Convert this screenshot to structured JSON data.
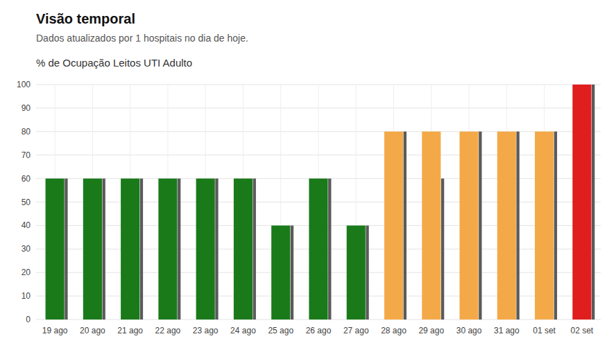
{
  "chart_data": {
    "type": "bar",
    "title": "Visão temporal",
    "subtitle": "Dados atualizados por 1 hospitais no dia de hoje.",
    "ylabel": "% de Ocupação Leitos UTI Adulto",
    "categories": [
      "19 ago",
      "20 ago",
      "21 ago",
      "22 ago",
      "23 ago",
      "24 ago",
      "25 ago",
      "26 ago",
      "27 ago",
      "28 ago",
      "29 ago",
      "30 ago",
      "31 ago",
      "01 set",
      "02 set"
    ],
    "series": [
      {
        "colors": [
          "#1a7a1a",
          "#1a7a1a",
          "#1a7a1a",
          "#1a7a1a",
          "#1a7a1a",
          "#1a7a1a",
          "#1a7a1a",
          "#1a7a1a",
          "#1a7a1a",
          "#f4a948",
          "#f4a948",
          "#f4a948",
          "#f4a948",
          "#f4a948",
          "#e01e1e"
        ],
        "values": [
          60,
          60,
          60,
          60,
          60,
          60,
          40,
          60,
          40,
          80,
          80,
          80,
          80,
          80,
          100
        ]
      },
      {
        "color": "#5a5a5a",
        "values": [
          60,
          60,
          60,
          60,
          60,
          60,
          40,
          60,
          40,
          80,
          60,
          80,
          80,
          80,
          100
        ]
      }
    ],
    "ylim": [
      0,
      100
    ],
    "yticks": [
      0,
      10,
      20,
      30,
      40,
      50,
      60,
      70,
      80,
      90,
      100
    ],
    "grid": true
  }
}
